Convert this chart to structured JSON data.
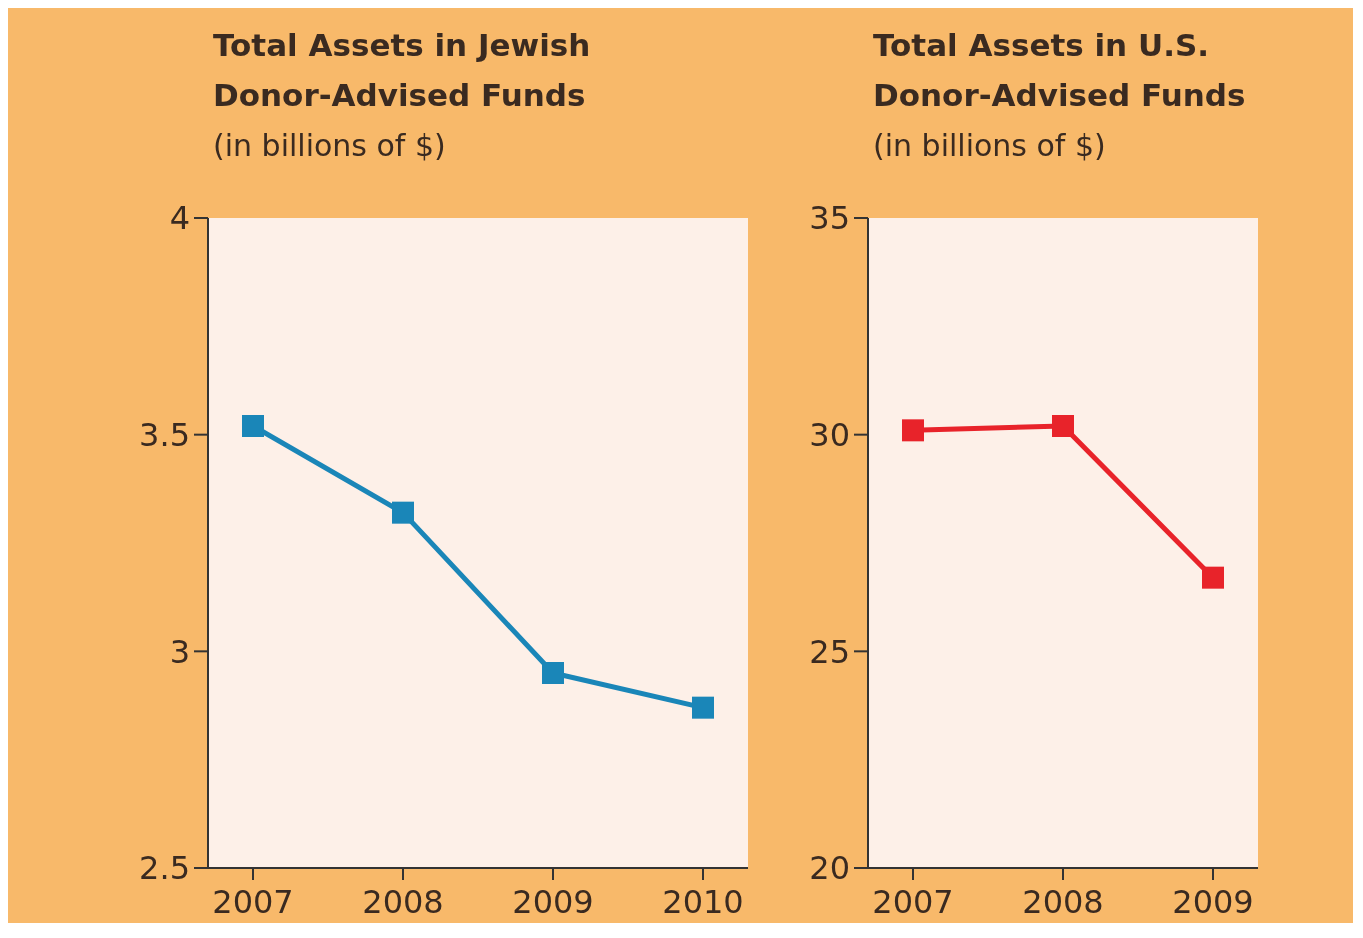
{
  "chart_data": [
    {
      "type": "line",
      "title": "Total Assets in Jewish Donor-Advised Funds",
      "subtitle": "(in billions of $)",
      "categories": [
        "2007",
        "2008",
        "2009",
        "2010"
      ],
      "series": [
        {
          "color": "#1a86b8",
          "values": [
            3.52,
            3.32,
            2.95,
            2.87
          ]
        }
      ],
      "ylim": [
        2.5,
        4
      ],
      "yticks": [
        2.5,
        3,
        3.5,
        4
      ],
      "marker": "square",
      "grid": false
    },
    {
      "type": "line",
      "title": "Total Assets in U.S. Donor-Advised Funds",
      "subtitle": "(in billions of $)",
      "categories": [
        "2007",
        "2008",
        "2009"
      ],
      "series": [
        {
          "color": "#e8232a",
          "values": [
            30.1,
            30.2,
            26.7
          ]
        }
      ],
      "ylim": [
        20,
        35
      ],
      "yticks": [
        20,
        25,
        30,
        35
      ],
      "marker": "square",
      "grid": false
    }
  ]
}
